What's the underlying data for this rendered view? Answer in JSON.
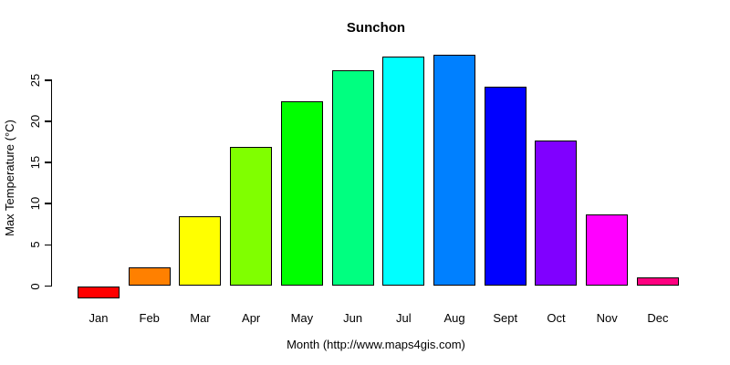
{
  "chart_data": {
    "type": "bar",
    "title": "Sunchon",
    "xlabel": "Month (http://www.maps4gis.com)",
    "ylabel": "Max Temperature (°C)",
    "categories": [
      "Jan",
      "Feb",
      "Mar",
      "Apr",
      "May",
      "Jun",
      "Jul",
      "Aug",
      "Sept",
      "Oct",
      "Nov",
      "Dec"
    ],
    "values": [
      -1.5,
      2.3,
      8.5,
      16.9,
      22.4,
      26.2,
      27.8,
      28.1,
      24.2,
      17.7,
      8.7,
      1.1
    ],
    "bar_colors": [
      "#FF0000",
      "#FF8000",
      "#FFFF00",
      "#80FF00",
      "#00FF00",
      "#00FF80",
      "#00FFFF",
      "#0080FF",
      "#0000FF",
      "#8000FF",
      "#FF00FF",
      "#FF0080"
    ],
    "bar_edge_color": "#000000",
    "yticks": [
      0,
      5,
      10,
      15,
      20,
      25
    ],
    "ylim": [
      -2.5,
      28.5
    ],
    "grid": false,
    "legend": null,
    "background": "#FFFFFF",
    "text_color": "#000000"
  }
}
